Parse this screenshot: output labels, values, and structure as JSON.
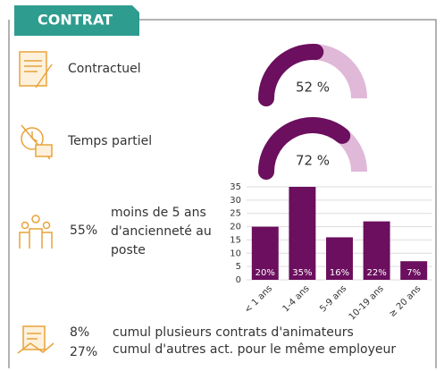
{
  "header": {
    "title": "CONTRAT"
  },
  "gauges": [
    {
      "label": "Contractuel",
      "value": 52,
      "value_label": "52 %"
    },
    {
      "label": "Temps partiel",
      "value": 72,
      "value_label": "72 %"
    }
  ],
  "seniority": {
    "value_label": "55%",
    "text": "moins de 5 ans d'ancienneté au poste"
  },
  "chart_data": {
    "type": "bar",
    "categories": [
      "< 1 ans",
      "1-4 ans",
      "5-9 ans",
      "10-19 ans",
      "≥ 20 ans"
    ],
    "values": [
      20,
      35,
      16,
      22,
      7
    ],
    "value_labels": [
      "20%",
      "35%",
      "16%",
      "22%",
      "7%"
    ],
    "color": "#6b0f5e",
    "ylim": [
      0,
      35
    ],
    "yticks": [
      0,
      5,
      10,
      15,
      20,
      25,
      30,
      35
    ],
    "grid": true
  },
  "cumul": [
    {
      "value_label": "8%",
      "text": "cumul plusieurs contrats d'animateurs"
    },
    {
      "value_label": "27%",
      "text": "cumul d'autres act. pour le même employeur"
    }
  ]
}
